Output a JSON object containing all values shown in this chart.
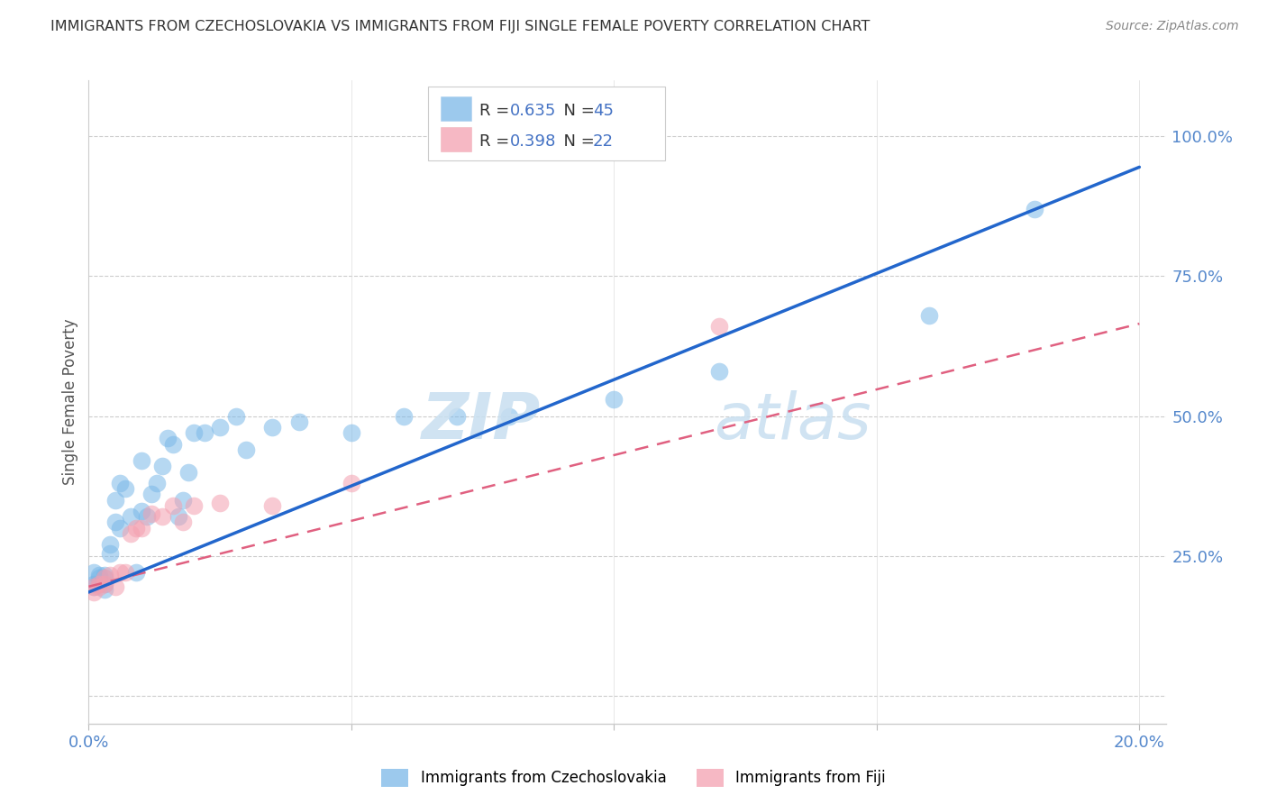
{
  "title": "IMMIGRANTS FROM CZECHOSLOVAKIA VS IMMIGRANTS FROM FIJI SINGLE FEMALE POVERTY CORRELATION CHART",
  "source": "Source: ZipAtlas.com",
  "ylabel_label": "Single Female Poverty",
  "xlim": [
    0.0,
    0.205
  ],
  "ylim": [
    -0.05,
    1.1
  ],
  "xticks": [
    0.0,
    0.05,
    0.1,
    0.15,
    0.2
  ],
  "xtick_labels": [
    "0.0%",
    "",
    "",
    "",
    "20.0%"
  ],
  "ytick_vals": [
    0.0,
    0.25,
    0.5,
    0.75,
    1.0
  ],
  "ytick_labels": [
    "",
    "25.0%",
    "50.0%",
    "75.0%",
    "100.0%"
  ],
  "legend1_r": "0.635",
  "legend1_n": "45",
  "legend2_r": "0.398",
  "legend2_n": "22",
  "color_czech": "#7bb8e8",
  "color_fiji": "#f4a0b0",
  "trendline_czech_color": "#2266cc",
  "trendline_fiji_color": "#e06080",
  "czech_trendline_x0": 0.0,
  "czech_trendline_y0": 0.185,
  "czech_trendline_x1": 0.2,
  "czech_trendline_y1": 0.945,
  "fiji_trendline_x0": 0.0,
  "fiji_trendline_y0": 0.195,
  "fiji_trendline_x1": 0.2,
  "fiji_trendline_y1": 0.665,
  "czech_x": [
    0.001,
    0.001,
    0.001,
    0.002,
    0.002,
    0.002,
    0.003,
    0.003,
    0.003,
    0.003,
    0.004,
    0.004,
    0.005,
    0.005,
    0.006,
    0.006,
    0.007,
    0.008,
    0.009,
    0.01,
    0.01,
    0.011,
    0.012,
    0.013,
    0.014,
    0.015,
    0.016,
    0.017,
    0.018,
    0.019,
    0.02,
    0.022,
    0.025,
    0.028,
    0.03,
    0.035,
    0.04,
    0.05,
    0.06,
    0.07,
    0.08,
    0.1,
    0.12,
    0.16,
    0.18
  ],
  "czech_y": [
    0.195,
    0.22,
    0.2,
    0.215,
    0.21,
    0.2,
    0.215,
    0.2,
    0.21,
    0.19,
    0.255,
    0.27,
    0.31,
    0.35,
    0.3,
    0.38,
    0.37,
    0.32,
    0.22,
    0.33,
    0.42,
    0.32,
    0.36,
    0.38,
    0.41,
    0.46,
    0.45,
    0.32,
    0.35,
    0.4,
    0.47,
    0.47,
    0.48,
    0.5,
    0.44,
    0.48,
    0.49,
    0.47,
    0.5,
    0.5,
    0.5,
    0.53,
    0.58,
    0.68,
    0.87
  ],
  "fiji_x": [
    0.001,
    0.001,
    0.002,
    0.002,
    0.003,
    0.003,
    0.004,
    0.005,
    0.006,
    0.007,
    0.008,
    0.009,
    0.01,
    0.012,
    0.014,
    0.016,
    0.018,
    0.02,
    0.025,
    0.035,
    0.05,
    0.12
  ],
  "fiji_y": [
    0.195,
    0.185,
    0.2,
    0.195,
    0.21,
    0.2,
    0.215,
    0.195,
    0.22,
    0.22,
    0.29,
    0.3,
    0.3,
    0.325,
    0.32,
    0.34,
    0.31,
    0.34,
    0.345,
    0.34,
    0.38,
    0.66
  ]
}
